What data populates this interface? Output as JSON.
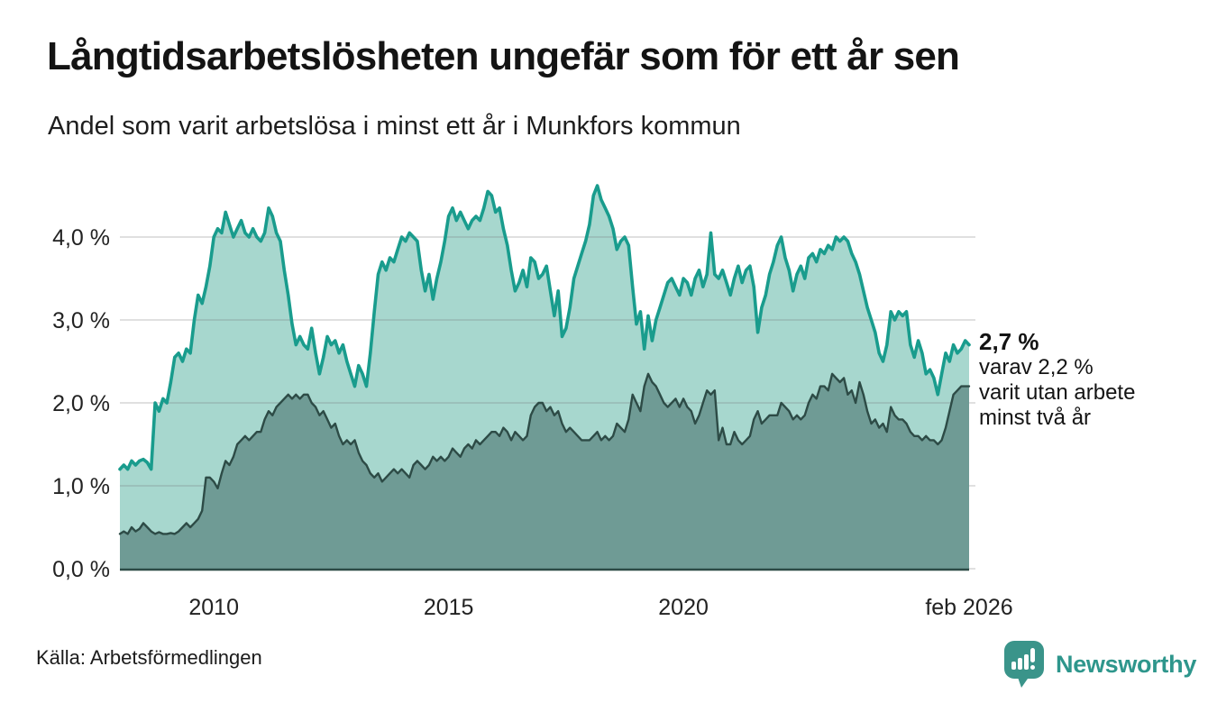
{
  "header": {
    "title": "Långtidsarbetslösheten ungefär som för ett år sen",
    "subtitle": "Andel som varit arbetslösa i minst ett år i Munkfors kommun"
  },
  "annotation": {
    "value_line": "2,7 %",
    "line2": "varav 2,2 %",
    "line3": "varit utan arbete",
    "line4": "minst två år"
  },
  "footer": {
    "source": "Källa: Arbetsförmedlingen",
    "brand": "Newsworthy"
  },
  "colors": {
    "line_total": "#199c8d",
    "fill_total": "#a7d7ce",
    "line_two_years": "#2d4b46",
    "fill_two_years": "#6f9b95",
    "gridline": "#dddddd",
    "text": "#141414",
    "brand": "#2e968c"
  },
  "chart_data": {
    "type": "area",
    "title": "Långtidsarbetslösheten ungefär som för ett år sen",
    "subtitle": "Andel som varit arbetslösa i minst ett år i Munkfors kommun",
    "unit": "%",
    "frequency": "monthly",
    "x_start": "2008-01",
    "x_end": "2026-02",
    "x_start_year": 2008.0,
    "ylim": [
      0,
      4.8
    ],
    "grid": true,
    "legend_position": "none",
    "yticks": [
      {
        "value": 0,
        "label": "0,0 %"
      },
      {
        "value": 1,
        "label": "1,0 %"
      },
      {
        "value": 2,
        "label": "2,0 %"
      },
      {
        "value": 3,
        "label": "3,0 %"
      },
      {
        "value": 4,
        "label": "4,0 %"
      }
    ],
    "xticks": [
      {
        "label": "2010",
        "year": 2010.0
      },
      {
        "label": "2015",
        "year": 2015.0
      },
      {
        "label": "2020",
        "year": 2020.0
      },
      {
        "label": "feb 2026",
        "year": 2026.083
      }
    ],
    "end_labels": {
      "total": "2,7 %",
      "two_years": "2,2 %"
    },
    "series": [
      {
        "name": "Andel arbetslösa minst ett år",
        "color": "#199c8d",
        "fill": "#a7d7ce",
        "values": [
          1.2,
          1.25,
          1.2,
          1.3,
          1.25,
          1.3,
          1.32,
          1.28,
          1.2,
          2.0,
          1.9,
          2.05,
          2.0,
          2.25,
          2.55,
          2.6,
          2.5,
          2.65,
          2.6,
          3.0,
          3.3,
          3.2,
          3.4,
          3.65,
          4.0,
          4.1,
          4.05,
          4.3,
          4.15,
          4.0,
          4.1,
          4.2,
          4.05,
          4.0,
          4.1,
          4.0,
          3.95,
          4.05,
          4.35,
          4.25,
          4.05,
          3.95,
          3.6,
          3.3,
          2.95,
          2.7,
          2.8,
          2.7,
          2.65,
          2.9,
          2.6,
          2.35,
          2.55,
          2.8,
          2.7,
          2.75,
          2.6,
          2.7,
          2.5,
          2.35,
          2.2,
          2.45,
          2.35,
          2.2,
          2.6,
          3.1,
          3.55,
          3.7,
          3.6,
          3.75,
          3.7,
          3.85,
          4.0,
          3.95,
          4.05,
          4.0,
          3.95,
          3.6,
          3.35,
          3.55,
          3.25,
          3.5,
          3.7,
          3.95,
          4.25,
          4.35,
          4.2,
          4.3,
          4.2,
          4.1,
          4.2,
          4.25,
          4.2,
          4.35,
          4.55,
          4.5,
          4.3,
          4.35,
          4.1,
          3.9,
          3.6,
          3.35,
          3.45,
          3.6,
          3.4,
          3.75,
          3.7,
          3.5,
          3.55,
          3.65,
          3.35,
          3.05,
          3.35,
          2.8,
          2.9,
          3.15,
          3.5,
          3.65,
          3.8,
          3.95,
          4.15,
          4.5,
          4.62,
          4.45,
          4.35,
          4.25,
          4.1,
          3.85,
          3.95,
          4.0,
          3.9,
          3.4,
          2.95,
          3.1,
          2.65,
          3.05,
          2.75,
          3.0,
          3.15,
          3.3,
          3.45,
          3.5,
          3.4,
          3.3,
          3.5,
          3.45,
          3.3,
          3.5,
          3.6,
          3.4,
          3.55,
          4.05,
          3.55,
          3.5,
          3.6,
          3.45,
          3.3,
          3.5,
          3.65,
          3.45,
          3.6,
          3.65,
          3.4,
          2.85,
          3.15,
          3.3,
          3.55,
          3.7,
          3.9,
          4.0,
          3.75,
          3.6,
          3.35,
          3.55,
          3.65,
          3.5,
          3.75,
          3.8,
          3.7,
          3.85,
          3.8,
          3.9,
          3.85,
          4.0,
          3.95,
          4.0,
          3.95,
          3.8,
          3.7,
          3.55,
          3.35,
          3.15,
          3.0,
          2.85,
          2.6,
          2.5,
          2.7,
          3.1,
          3.0,
          3.1,
          3.05,
          3.1,
          2.7,
          2.55,
          2.75,
          2.6,
          2.35,
          2.4,
          2.3,
          2.1,
          2.35,
          2.6,
          2.5,
          2.7,
          2.6,
          2.65,
          2.75,
          2.7
        ]
      },
      {
        "name": "Andel arbetslösa minst två år",
        "color": "#2d4b46",
        "fill": "#6f9b95",
        "values": [
          0.42,
          0.45,
          0.42,
          0.5,
          0.45,
          0.48,
          0.55,
          0.5,
          0.45,
          0.42,
          0.44,
          0.42,
          0.42,
          0.43,
          0.42,
          0.45,
          0.5,
          0.55,
          0.5,
          0.55,
          0.6,
          0.7,
          1.1,
          1.1,
          1.05,
          0.97,
          1.15,
          1.3,
          1.25,
          1.35,
          1.5,
          1.55,
          1.6,
          1.55,
          1.6,
          1.65,
          1.65,
          1.8,
          1.9,
          1.85,
          1.95,
          2.0,
          2.05,
          2.1,
          2.05,
          2.1,
          2.05,
          2.1,
          2.1,
          2.0,
          1.95,
          1.85,
          1.9,
          1.8,
          1.7,
          1.75,
          1.6,
          1.5,
          1.55,
          1.5,
          1.55,
          1.4,
          1.3,
          1.25,
          1.15,
          1.1,
          1.15,
          1.05,
          1.1,
          1.15,
          1.2,
          1.15,
          1.2,
          1.15,
          1.1,
          1.25,
          1.3,
          1.25,
          1.2,
          1.25,
          1.35,
          1.3,
          1.35,
          1.3,
          1.35,
          1.45,
          1.4,
          1.35,
          1.45,
          1.5,
          1.45,
          1.55,
          1.5,
          1.55,
          1.6,
          1.65,
          1.65,
          1.6,
          1.7,
          1.65,
          1.55,
          1.65,
          1.6,
          1.55,
          1.6,
          1.85,
          1.95,
          2.0,
          2.0,
          1.9,
          1.95,
          1.85,
          1.9,
          1.75,
          1.65,
          1.7,
          1.65,
          1.6,
          1.55,
          1.55,
          1.55,
          1.6,
          1.65,
          1.55,
          1.6,
          1.55,
          1.6,
          1.75,
          1.7,
          1.65,
          1.8,
          2.1,
          2.0,
          1.9,
          2.2,
          2.35,
          2.25,
          2.2,
          2.1,
          2.0,
          1.95,
          2.0,
          2.05,
          1.95,
          2.05,
          1.95,
          1.9,
          1.75,
          1.85,
          2.0,
          2.15,
          2.1,
          2.15,
          1.55,
          1.7,
          1.5,
          1.5,
          1.65,
          1.55,
          1.5,
          1.55,
          1.6,
          1.8,
          1.9,
          1.75,
          1.8,
          1.85,
          1.85,
          1.85,
          2.0,
          1.95,
          1.9,
          1.8,
          1.85,
          1.8,
          1.85,
          2.0,
          2.1,
          2.05,
          2.2,
          2.2,
          2.15,
          2.35,
          2.3,
          2.25,
          2.3,
          2.1,
          2.15,
          2.0,
          2.25,
          2.1,
          1.9,
          1.75,
          1.8,
          1.7,
          1.75,
          1.65,
          1.95,
          1.85,
          1.8,
          1.8,
          1.75,
          1.65,
          1.6,
          1.6,
          1.55,
          1.6,
          1.55,
          1.55,
          1.5,
          1.55,
          1.7,
          1.9,
          2.1,
          2.15,
          2.2,
          2.2,
          2.2
        ]
      }
    ]
  }
}
